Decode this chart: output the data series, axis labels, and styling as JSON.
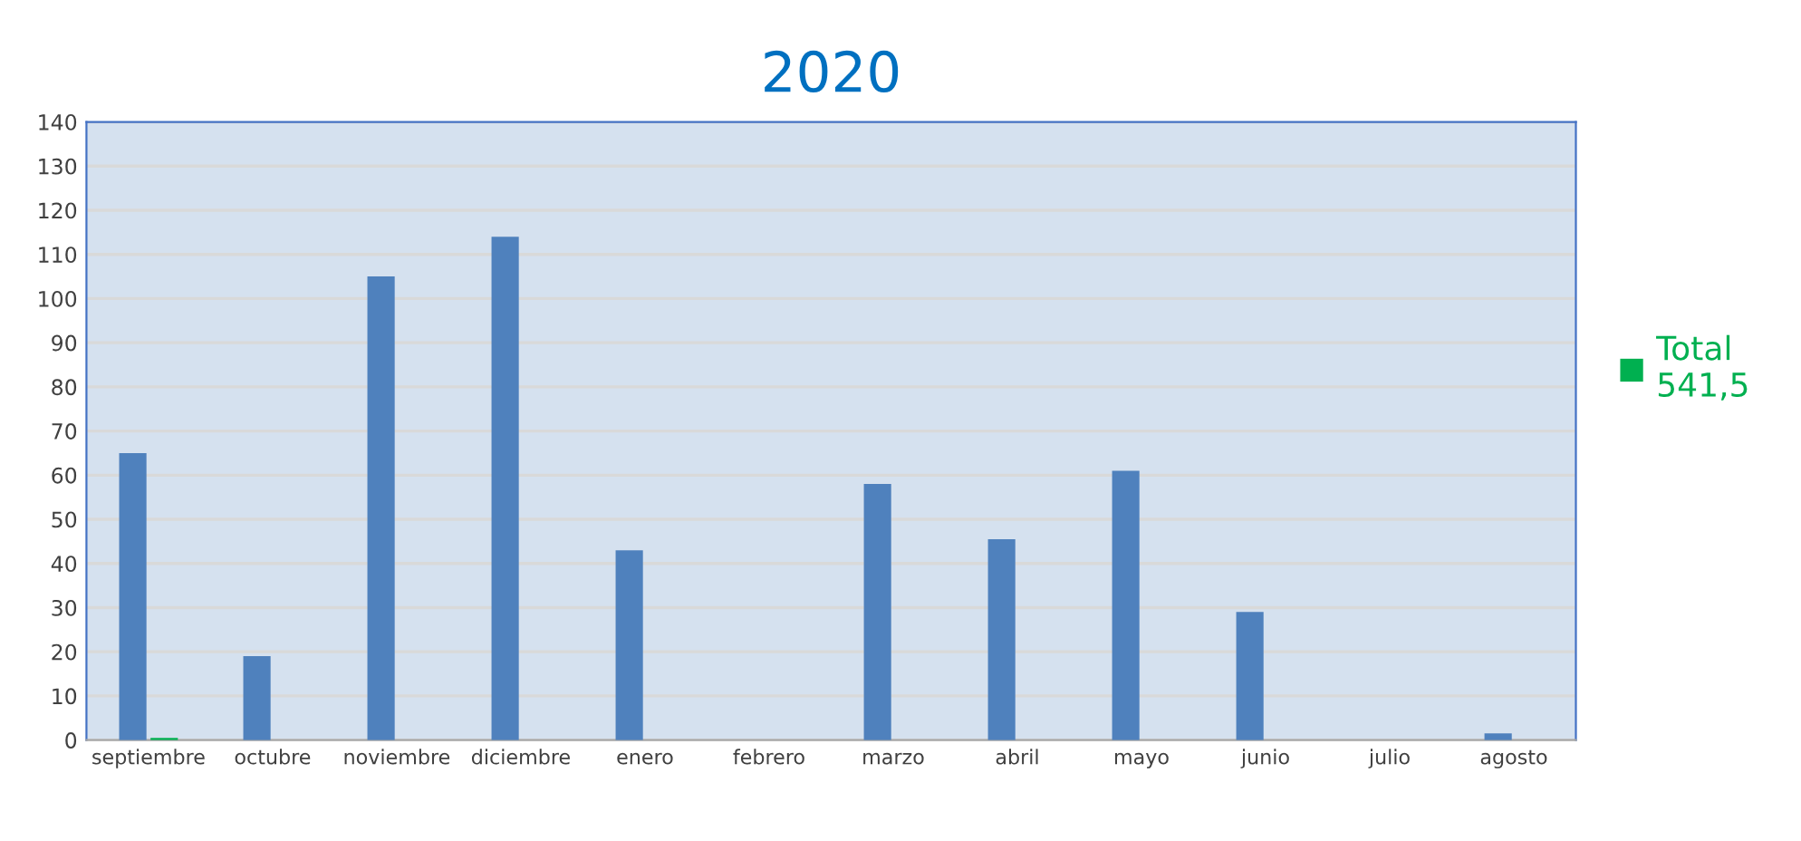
{
  "chart_data": {
    "type": "bar",
    "title": "2020",
    "categories": [
      "septiembre",
      "octubre",
      "noviembre",
      "diciembre",
      "enero",
      "febrero",
      "marzo",
      "abril",
      "mayo",
      "junio",
      "julio",
      "agosto"
    ],
    "series": [
      {
        "color": "#4f81bd",
        "values": [
          65,
          19,
          105,
          114,
          43,
          0,
          58,
          45.5,
          61,
          29,
          0,
          1.5
        ]
      },
      {
        "name": "Total 541,5",
        "color": "#00b050",
        "values": [
          0.5,
          null,
          null,
          null,
          null,
          null,
          null,
          null,
          null,
          null,
          null,
          null
        ]
      }
    ],
    "ylim": [
      0,
      140
    ],
    "yticks": [
      0,
      10,
      20,
      30,
      40,
      50,
      60,
      70,
      80,
      90,
      100,
      110,
      120,
      130,
      140
    ],
    "grid": "y",
    "legend": "right"
  }
}
